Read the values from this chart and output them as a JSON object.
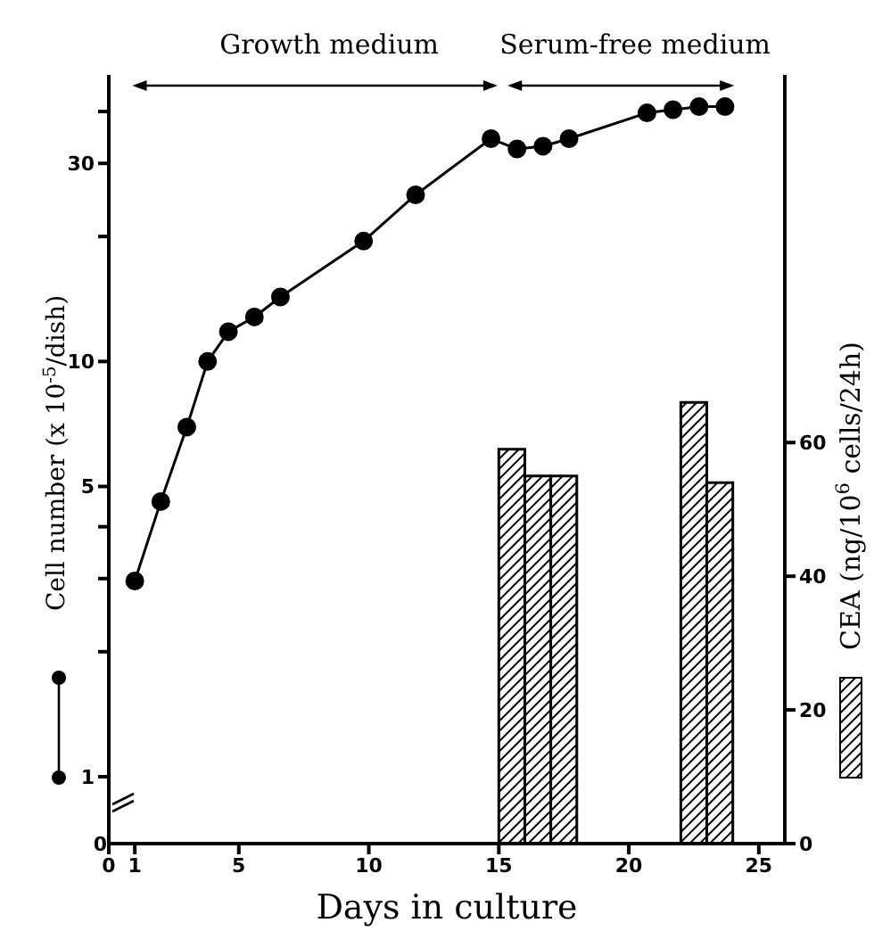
{
  "chart_data": {
    "type": "line",
    "xlabel": "Days in culture",
    "ylabel": "Cell number (x 10$^{-5}$/dish)",
    "y2label": "CEA (ng/10$^{6}$ cells/24h)",
    "annotations": [
      "Growth medium",
      "Serum-free medium",
      "0"
    ],
    "log": "y",
    "grid": false,
    "legend": false,
    "marker": "circle",
    "xlim": [
      0,
      26
    ],
    "xticks": [
      0,
      1,
      5,
      10,
      15,
      20,
      25
    ],
    "ylim": [
      0.69,
      49
    ],
    "yticks": [
      1,
      {
        "value": 2,
        "label": null
      },
      {
        "value": 3,
        "label": null
      },
      {
        "value": 4,
        "label": null
      },
      5,
      10,
      {
        "value": 20,
        "label": null
      },
      30,
      {
        "value": 40,
        "label": null
      }
    ],
    "y2lim": [
      0,
      115
    ],
    "y2ticks": [
      0,
      20,
      40,
      60
    ],
    "series": [
      {
        "color": "#000000",
        "x": [
          1,
          2,
          3,
          3.8,
          4.6,
          5.6,
          6.6,
          9.8,
          11.8,
          14.7,
          15.7,
          16.7,
          17.7,
          20.7,
          21.7,
          22.7,
          23.7
        ],
        "values": [
          2.96,
          4.6,
          6.95,
          10,
          11.8,
          12.8,
          14.3,
          19.5,
          25.2,
          34.4,
          32.5,
          33,
          34.4,
          39.7,
          40.4,
          41.1,
          41.1
        ]
      },
      {
        "type": "bar",
        "axis": "y2",
        "color": "#000000",
        "x": [
          15.5,
          16.5,
          17.5,
          22.5,
          23.5
        ],
        "values": [
          59,
          55,
          55,
          66,
          54
        ]
      }
    ]
  }
}
